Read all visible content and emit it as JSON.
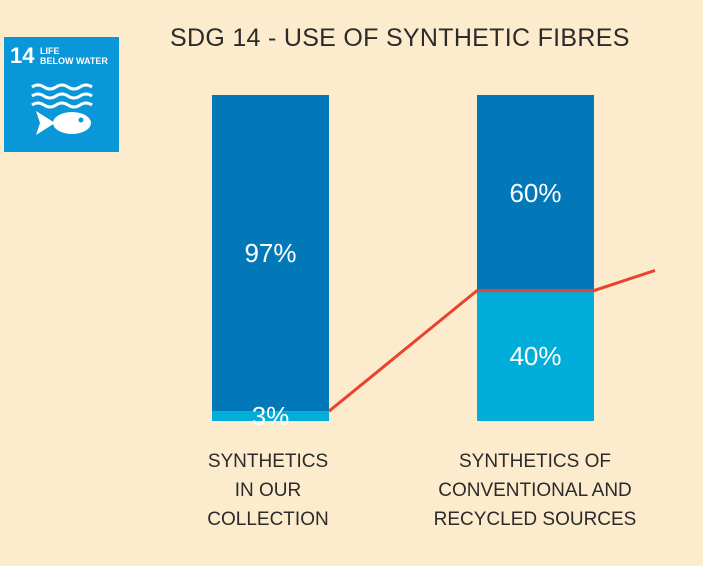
{
  "logo": {
    "number": "14",
    "text": "LIFE\nBELOW WATER",
    "background": "#0a97d9",
    "icon": "fish-waves-icon"
  },
  "chart_data": {
    "type": "bar",
    "stacked": true,
    "title": "SDG 14 - USE OF SYNTHETIC FIBRES",
    "categories": [
      "SYNTHETICS\nIN OUR\nCOLLECTION",
      "SYNTHETICS OF\nCONVENTIONAL AND\nRECYCLED SOURCES"
    ],
    "series": [
      {
        "values": [
          3,
          40
        ],
        "labels": [
          "3%",
          "40%"
        ],
        "color": "#00aed9"
      },
      {
        "values": [
          97,
          60
        ],
        "labels": [
          "97%",
          "60%"
        ],
        "color": "#0378b9"
      }
    ],
    "ylim": [
      0,
      100
    ],
    "grid": false,
    "connector_line_color": "#e8432d"
  }
}
